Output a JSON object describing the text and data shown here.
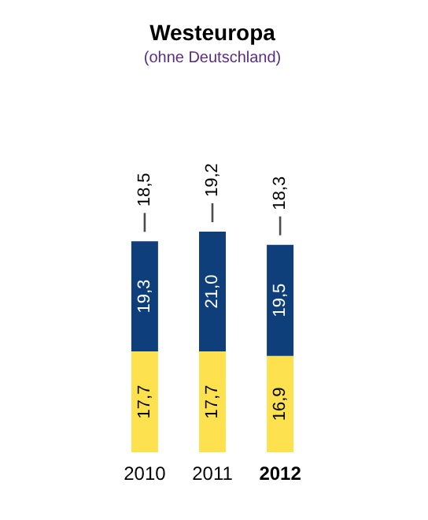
{
  "chart_data": {
    "type": "bar",
    "title": "Westeuropa",
    "subtitle": "(ohne Deutschland)",
    "categories": [
      "2010",
      "2011",
      "2012"
    ],
    "stacked": true,
    "series": [
      {
        "color": "#fde14f",
        "values": [
          17.7,
          17.7,
          16.9
        ],
        "value_labels": [
          "17,7",
          "17,7",
          "16,9"
        ]
      },
      {
        "color": "#0f3f7b",
        "values": [
          19.3,
          21.0,
          19.5
        ],
        "value_labels": [
          "19,3",
          "21,0",
          "19,5"
        ]
      }
    ],
    "annotations": [
      "18,5",
      "19,2",
      "18,3"
    ]
  }
}
